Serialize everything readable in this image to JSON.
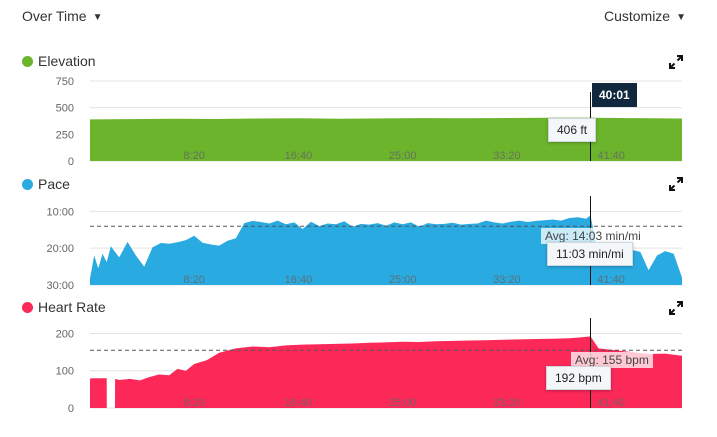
{
  "toolbar": {
    "view_label": "Over Time",
    "customize_label": "Customize"
  },
  "cursor": {
    "time": "40:01",
    "x_seconds": 2401
  },
  "chart_data": [
    {
      "type": "area",
      "title": "Elevation",
      "color": "#6cb42c",
      "x_ticks": [
        "8:20",
        "16:40",
        "25:00",
        "33:20",
        "41:40"
      ],
      "x_tick_seconds": [
        500,
        1000,
        1500,
        2000,
        2500
      ],
      "xlim": [
        0,
        2840
      ],
      "y_ticks": [
        "750",
        "500",
        "250",
        "0"
      ],
      "y_tick_values": [
        750,
        500,
        250,
        0
      ],
      "ylim": [
        0,
        750
      ],
      "x": [
        0,
        200,
        400,
        600,
        800,
        1000,
        1200,
        1400,
        1600,
        1800,
        2000,
        2200,
        2400,
        2600,
        2840
      ],
      "y": [
        390,
        393,
        396,
        394,
        398,
        400,
        397,
        399,
        402,
        400,
        403,
        405,
        406,
        402,
        398
      ],
      "tooltip": "406 ft"
    },
    {
      "type": "area",
      "title": "Pace",
      "color": "#29aae1",
      "inverted": true,
      "x_ticks": [
        "8:20",
        "16:40",
        "25:00",
        "33:20",
        "41:40"
      ],
      "x_tick_seconds": [
        500,
        1000,
        1500,
        2000,
        2500
      ],
      "xlim": [
        0,
        2840
      ],
      "y_ticks": [
        "10:00",
        "20:00",
        "30:00"
      ],
      "y_tick_values": [
        10,
        20,
        30
      ],
      "ylim": [
        8,
        30
      ],
      "x": [
        0,
        20,
        40,
        60,
        80,
        100,
        140,
        180,
        220,
        260,
        300,
        340,
        380,
        420,
        460,
        500,
        540,
        580,
        620,
        660,
        700,
        740,
        780,
        820,
        860,
        900,
        940,
        980,
        1020,
        1060,
        1100,
        1140,
        1180,
        1220,
        1260,
        1300,
        1340,
        1380,
        1420,
        1460,
        1500,
        1540,
        1580,
        1620,
        1660,
        1700,
        1740,
        1780,
        1820,
        1860,
        1900,
        1940,
        1980,
        2020,
        2060,
        2100,
        2140,
        2180,
        2220,
        2260,
        2300,
        2340,
        2380,
        2401,
        2440,
        2480,
        2520,
        2560,
        2600,
        2640,
        2680,
        2720,
        2760,
        2800,
        2840
      ],
      "y": [
        28.2,
        22.0,
        25.5,
        21.5,
        23.8,
        19.5,
        22.5,
        18.3,
        22.0,
        25.0,
        19.8,
        18.6,
        18.8,
        18.4,
        17.8,
        16.6,
        18.5,
        19.0,
        19.3,
        18.0,
        17.3,
        13.2,
        12.6,
        12.9,
        13.3,
        12.5,
        13.5,
        13.0,
        14.8,
        12.8,
        14.0,
        13.3,
        13.5,
        12.7,
        14.2,
        13.4,
        13.6,
        13.2,
        13.9,
        13.0,
        13.5,
        13.0,
        14.2,
        13.2,
        13.5,
        13.4,
        13.1,
        13.6,
        13.4,
        13.3,
        12.5,
        13.0,
        13.3,
        12.8,
        12.5,
        12.9,
        12.6,
        12.4,
        12.2,
        12.5,
        11.8,
        11.6,
        12.0,
        11.1,
        22.5,
        21.0,
        20.0,
        21.5,
        20.5,
        21.0,
        26.0,
        22.0,
        20.8,
        21.5,
        28.0
      ],
      "average": 14.05,
      "average_label": "Avg: 14:03 min/mi",
      "tooltip": "11:03 min/mi"
    },
    {
      "type": "area",
      "title": "Heart Rate",
      "color": "#fc2858",
      "x_ticks": [
        "8:20",
        "16:40",
        "25:00",
        "33:20",
        "41:40"
      ],
      "x_tick_seconds": [
        500,
        1000,
        1500,
        2000,
        2500
      ],
      "xlim": [
        0,
        2840
      ],
      "y_ticks": [
        "200",
        "100",
        "0"
      ],
      "y_tick_values": [
        200,
        100,
        0
      ],
      "ylim": [
        0,
        220
      ],
      "x": [
        0,
        5,
        80,
        80.5,
        120,
        120.5,
        140,
        190,
        240,
        280,
        330,
        380,
        420,
        460,
        500,
        560,
        620,
        700,
        780,
        860,
        940,
        1020,
        1100,
        1180,
        1260,
        1340,
        1420,
        1500,
        1580,
        1660,
        1740,
        1820,
        1900,
        1980,
        2060,
        2140,
        2220,
        2300,
        2360,
        2401,
        2440,
        2520,
        2600,
        2680,
        2760,
        2840
      ],
      "y": [
        78,
        80,
        80,
        0,
        0,
        78,
        75,
        78,
        74,
        82,
        90,
        88,
        105,
        100,
        118,
        128,
        148,
        160,
        165,
        163,
        168,
        170,
        171,
        172,
        173,
        175,
        176,
        178,
        177,
        179,
        180,
        181,
        182,
        183,
        184,
        185,
        186,
        187,
        190,
        192,
        160,
        155,
        150,
        145,
        146,
        140
      ],
      "average": 155,
      "average_label": "Avg: 155 bpm",
      "tooltip": "192 bpm"
    }
  ]
}
